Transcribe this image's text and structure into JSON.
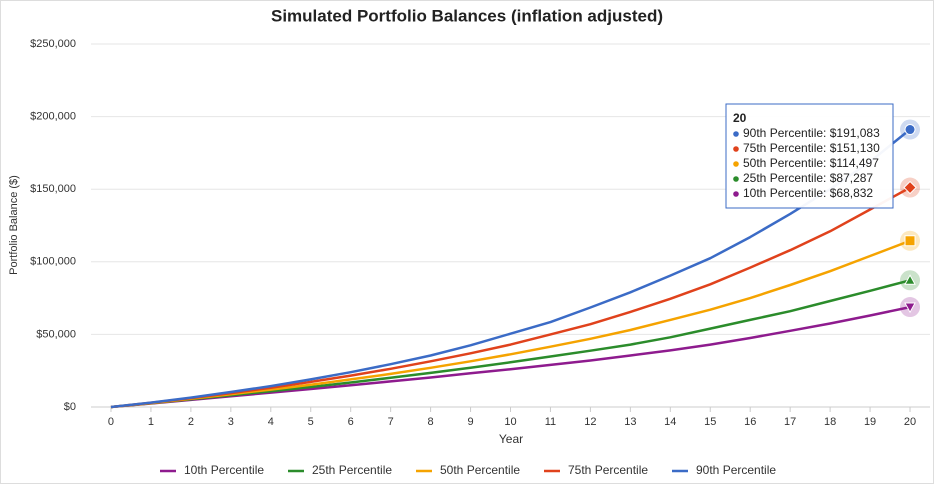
{
  "chart_data": {
    "type": "line",
    "title": "Simulated Portfolio Balances (inflation adjusted)",
    "x_label": "Year",
    "y_label": "Portfolio Balance ($)",
    "x": [
      0,
      1,
      2,
      3,
      4,
      5,
      6,
      7,
      8,
      9,
      10,
      11,
      12,
      13,
      14,
      15,
      16,
      17,
      18,
      19,
      20
    ],
    "ylim": [
      0,
      250000
    ],
    "yticks": [
      {
        "value": 0,
        "label": "$0"
      },
      {
        "value": 50000,
        "label": "$50,000"
      },
      {
        "value": 100000,
        "label": "$100,000"
      },
      {
        "value": 150000,
        "label": "$150,000"
      },
      {
        "value": 200000,
        "label": "$200,000"
      },
      {
        "value": 250000,
        "label": "$250,000"
      }
    ],
    "grid": true,
    "legend": "bottom",
    "series": [
      {
        "name": "10th Percentile",
        "color": "#8e1b8e",
        "marker": "triangle-down",
        "values": [
          0,
          2400,
          4900,
          7400,
          9900,
          12400,
          15000,
          17600,
          20300,
          23200,
          26000,
          29000,
          32000,
          35500,
          39000,
          43000,
          47500,
          52500,
          57500,
          63000,
          68832
        ]
      },
      {
        "name": "25th Percentile",
        "color": "#2b8c2b",
        "marker": "triangle",
        "values": [
          0,
          2600,
          5300,
          8100,
          10900,
          13800,
          16900,
          20100,
          23500,
          27000,
          30800,
          34800,
          38800,
          43000,
          48000,
          54000,
          60000,
          66000,
          73000,
          80000,
          87287
        ]
      },
      {
        "name": "50th Percentile",
        "color": "#f5a300",
        "marker": "square",
        "values": [
          0,
          2700,
          5700,
          8800,
          12000,
          15300,
          19000,
          22800,
          27000,
          31500,
          36300,
          41500,
          47000,
          53000,
          60000,
          67000,
          75000,
          84000,
          93500,
          104000,
          114497
        ]
      },
      {
        "name": "75th Percentile",
        "color": "#e0421c",
        "marker": "diamond",
        "values": [
          0,
          2900,
          6100,
          9600,
          13300,
          17300,
          21600,
          26300,
          31500,
          37000,
          43000,
          50000,
          57000,
          65500,
          74500,
          84500,
          96000,
          108000,
          121000,
          136000,
          151130
        ]
      },
      {
        "name": "90th Percentile",
        "color": "#3b6bc6",
        "marker": "circle",
        "values": [
          0,
          3000,
          6500,
          10300,
          14400,
          19000,
          24000,
          29500,
          35500,
          42500,
          50500,
          58500,
          68500,
          79000,
          90500,
          102500,
          117000,
          133000,
          150000,
          169000,
          191083
        ]
      }
    ],
    "tooltip": {
      "title": "20",
      "rows": [
        "90th Percentile: $191,083",
        "75th Percentile: $151,130",
        "50th Percentile: $114,497",
        "25th Percentile: $87,287",
        "10th Percentile: $68,832"
      ],
      "colors": [
        "#3b6bc6",
        "#e0421c",
        "#f5a300",
        "#2b8c2b",
        "#8e1b8e"
      ]
    }
  }
}
